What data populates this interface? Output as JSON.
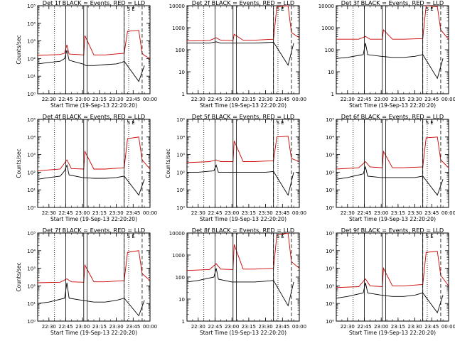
{
  "chart_data": [
    {
      "type": "line",
      "title": "Det 1f BLACK = Events, RED = LLD",
      "xlabel": "Start Time (19-Sep-13 22:20:20)",
      "ylabel": "Counts/sec",
      "yscale": "log",
      "ylim": [
        1,
        100000
      ],
      "yticks": [
        "10⁰",
        "10¹",
        "10²",
        "10³",
        "10⁴",
        "10⁵"
      ],
      "xticks": [
        "22:30",
        "22:45",
        "23:00",
        "23:15",
        "23:30",
        "23:45",
        "00:00"
      ],
      "xlim": [
        "22:20",
        "00:00"
      ],
      "markers": {
        "solid": [
          "22:45",
          "23:01",
          "23:04",
          "23:37"
        ],
        "dotted": [
          "22:35",
          "23:41"
        ],
        "dashed": [
          "23:37",
          "23:53"
        ]
      },
      "annotation": "S E",
      "series": [
        {
          "name": "BLACK = Events",
          "color": "#000000",
          "x": [
            "22:20",
            "22:30",
            "22:40",
            "22:44",
            "22:46",
            "22:48",
            "22:55",
            "23:00",
            "23:03",
            "23:10",
            "23:20",
            "23:30",
            "23:35",
            "23:37",
            "23:50",
            "23:55"
          ],
          "y": [
            50,
            60,
            70,
            100,
            300,
            80,
            60,
            50,
            40,
            40,
            45,
            50,
            60,
            70,
            5,
            40
          ]
        },
        {
          "name": "RED = LLD",
          "color": "#cc0000",
          "x": [
            "22:20",
            "22:30",
            "22:40",
            "22:44",
            "22:46",
            "22:48",
            "22:55",
            "23:01",
            "23:02",
            "23:10",
            "23:20",
            "23:37",
            "23:40",
            "23:50",
            "23:53",
            "23:55",
            "00:00"
          ],
          "y": [
            150,
            160,
            170,
            200,
            600,
            180,
            170,
            160,
            2000,
            160,
            160,
            200,
            3500,
            4000,
            200,
            150,
            100
          ]
        }
      ]
    },
    {
      "type": "line",
      "title": "Det 2f BLACK = Events, RED = LLD",
      "xlabel": "Start Time (19-Sep-13 22:20:20)",
      "ylabel": "",
      "yscale": "log",
      "ylim": [
        1,
        10000
      ],
      "yticks": [
        "1",
        "10",
        "100",
        "1000",
        "10000"
      ],
      "xticks": [
        "22:30",
        "22:45",
        "23:00",
        "23:15",
        "23:30",
        "23:45",
        "00:00"
      ],
      "xlim": [
        "22:20",
        "00:00"
      ],
      "markers": {
        "solid": [
          "22:45",
          "23:01",
          "23:04",
          "23:37"
        ],
        "dotted": [
          "22:35",
          "23:41"
        ],
        "dashed": [
          "23:37",
          "23:53"
        ]
      },
      "annotation": "S E",
      "series": [
        {
          "name": "BLACK = Events",
          "color": "#000000",
          "x": [
            "22:20",
            "22:40",
            "22:46",
            "22:50",
            "23:00",
            "23:10",
            "23:20",
            "23:30",
            "23:37",
            "23:50",
            "23:55"
          ],
          "y": [
            200,
            200,
            230,
            200,
            200,
            200,
            200,
            210,
            220,
            20,
            200
          ]
        },
        {
          "name": "RED = LLD",
          "color": "#cc0000",
          "x": [
            "22:20",
            "22:40",
            "22:46",
            "22:50",
            "23:01",
            "23:02",
            "23:10",
            "23:20",
            "23:37",
            "23:40",
            "23:50",
            "23:53",
            "00:00"
          ],
          "y": [
            250,
            260,
            350,
            270,
            260,
            500,
            270,
            270,
            300,
            9000,
            10000,
            600,
            350
          ]
        }
      ]
    },
    {
      "type": "line",
      "title": "Det 3f BLACK = Events, RED = LLD",
      "xlabel": "Start Time (19-Sep-13 22:20:20)",
      "ylabel": "",
      "yscale": "log",
      "ylim": [
        1,
        10000
      ],
      "yticks": [
        "1",
        "10",
        "100",
        "1000",
        "10000"
      ],
      "xticks": [
        "22:30",
        "22:45",
        "23:00",
        "23:15",
        "23:30",
        "23:45",
        "00:00"
      ],
      "xlim": [
        "22:20",
        "00:00"
      ],
      "markers": {
        "solid": [
          "22:45",
          "23:01",
          "23:04",
          "23:37"
        ],
        "dotted": [
          "22:35",
          "23:41"
        ],
        "dashed": [
          "23:37",
          "23:53"
        ]
      },
      "annotation": "S E",
      "series": [
        {
          "name": "BLACK = Events",
          "color": "#000000",
          "x": [
            "22:20",
            "22:30",
            "22:44",
            "22:46",
            "22:48",
            "23:00",
            "23:10",
            "23:20",
            "23:30",
            "23:37",
            "23:50",
            "23:55"
          ],
          "y": [
            40,
            45,
            60,
            200,
            60,
            50,
            45,
            45,
            50,
            60,
            5,
            40
          ]
        },
        {
          "name": "RED = LLD",
          "color": "#cc0000",
          "x": [
            "22:20",
            "22:40",
            "22:46",
            "22:50",
            "23:01",
            "23:02",
            "23:10",
            "23:20",
            "23:37",
            "23:40",
            "23:50",
            "23:53",
            "00:00"
          ],
          "y": [
            300,
            300,
            400,
            300,
            300,
            800,
            300,
            300,
            320,
            10000,
            9000,
            800,
            300
          ]
        }
      ]
    },
    {
      "type": "line",
      "title": "Det 4f BLACK = Events, RED = LLD",
      "xlabel": "Start Time (19-Sep-13 22:20:20)",
      "ylabel": "Counts/sec",
      "yscale": "log",
      "ylim": [
        1,
        100000
      ],
      "yticks": [
        "10⁰",
        "10¹",
        "10²",
        "10³",
        "10⁴",
        "10⁵"
      ],
      "xticks": [
        "22:30",
        "22:45",
        "23:00",
        "23:15",
        "23:30",
        "23:45",
        "00:00"
      ],
      "xlim": [
        "22:20",
        "00:00"
      ],
      "markers": {
        "solid": [
          "22:45",
          "23:01",
          "23:04",
          "23:37"
        ],
        "dotted": [
          "22:35",
          "23:41"
        ],
        "dashed": [
          "23:37",
          "23:53"
        ]
      },
      "annotation": "S E",
      "series": [
        {
          "name": "BLACK = Events",
          "color": "#000000",
          "x": [
            "22:20",
            "22:30",
            "22:40",
            "22:44",
            "22:46",
            "22:48",
            "23:00",
            "23:10",
            "23:20",
            "23:30",
            "23:37",
            "23:50",
            "23:55"
          ],
          "y": [
            40,
            50,
            60,
            120,
            250,
            70,
            50,
            45,
            45,
            50,
            60,
            5,
            40
          ]
        },
        {
          "name": "RED = LLD",
          "color": "#cc0000",
          "x": [
            "22:20",
            "22:40",
            "22:46",
            "22:50",
            "23:01",
            "23:02",
            "23:10",
            "23:20",
            "23:37",
            "23:40",
            "23:50",
            "23:53",
            "00:00"
          ],
          "y": [
            120,
            150,
            500,
            160,
            150,
            1500,
            150,
            150,
            180,
            8000,
            10000,
            500,
            150
          ]
        }
      ]
    },
    {
      "type": "line",
      "title": "Det 5f BLACK = Events, RED = LLD",
      "xlabel": "Start Time (19-Sep-13 22:20:20)",
      "ylabel": "Counts/sec",
      "yscale": "log",
      "ylim": [
        1,
        100000
      ],
      "yticks": [
        "10⁰",
        "10¹",
        "10²",
        "10³",
        "10⁴",
        "10⁵"
      ],
      "xticks": [
        "22:30",
        "22:45",
        "23:00",
        "23:15",
        "23:30",
        "23:45",
        "00:00"
      ],
      "xlim": [
        "22:20",
        "00:00"
      ],
      "markers": {
        "solid": [
          "22:45",
          "23:01",
          "23:04",
          "23:37"
        ],
        "dotted": [
          "22:35",
          "23:41"
        ],
        "dashed": [
          "23:37",
          "23:53"
        ]
      },
      "annotation": "S E",
      "series": [
        {
          "name": "BLACK = Events",
          "color": "#000000",
          "x": [
            "22:20",
            "22:30",
            "22:44",
            "22:46",
            "22:48",
            "23:00",
            "23:10",
            "23:20",
            "23:30",
            "23:37",
            "23:50",
            "23:55"
          ],
          "y": [
            100,
            100,
            120,
            250,
            100,
            100,
            100,
            100,
            100,
            110,
            5,
            100
          ]
        },
        {
          "name": "RED = LLD",
          "color": "#cc0000",
          "x": [
            "22:20",
            "22:40",
            "22:46",
            "22:50",
            "23:01",
            "23:02",
            "23:10",
            "23:20",
            "23:37",
            "23:40",
            "23:50",
            "23:53",
            "00:00"
          ],
          "y": [
            350,
            400,
            500,
            400,
            400,
            6000,
            400,
            400,
            450,
            10000,
            11000,
            600,
            400
          ]
        }
      ]
    },
    {
      "type": "line",
      "title": "Det 6f BLACK = Events, RED = LLD",
      "xlabel": "Start Time (19-Sep-13 22:20:20)",
      "ylabel": "",
      "yscale": "log",
      "ylim": [
        1,
        100000
      ],
      "yticks": [
        "10⁰",
        "10¹",
        "10²",
        "10³",
        "10⁴",
        "10⁵"
      ],
      "xticks": [
        "22:30",
        "22:45",
        "23:00",
        "23:15",
        "23:30",
        "23:45",
        "00:00"
      ],
      "xlim": [
        "22:20",
        "00:00"
      ],
      "markers": {
        "solid": [
          "22:45",
          "23:01",
          "23:04",
          "23:37"
        ],
        "dotted": [
          "22:35",
          "23:41"
        ],
        "dashed": [
          "23:37",
          "23:53"
        ]
      },
      "annotation": "S E",
      "series": [
        {
          "name": "BLACK = Events",
          "color": "#000000",
          "x": [
            "22:20",
            "22:30",
            "22:44",
            "22:46",
            "22:48",
            "23:00",
            "23:10",
            "23:20",
            "23:30",
            "23:37",
            "23:50",
            "23:55"
          ],
          "y": [
            40,
            50,
            80,
            200,
            60,
            50,
            50,
            50,
            50,
            60,
            5,
            40
          ]
        },
        {
          "name": "RED = LLD",
          "color": "#cc0000",
          "x": [
            "22:20",
            "22:40",
            "22:46",
            "22:50",
            "23:01",
            "23:02",
            "23:10",
            "23:20",
            "23:37",
            "23:40",
            "23:50",
            "23:53",
            "00:00"
          ],
          "y": [
            150,
            180,
            400,
            200,
            180,
            1500,
            180,
            180,
            200,
            9000,
            10000,
            500,
            180
          ]
        }
      ]
    },
    {
      "type": "line",
      "title": "Det 7f BLACK = Events, RED = LLD",
      "xlabel": "Start Time (19-Sep-13 22:20:20)",
      "ylabel": "Counts/sec",
      "yscale": "log",
      "ylim": [
        1,
        100000
      ],
      "yticks": [
        "10⁰",
        "10¹",
        "10²",
        "10³",
        "10⁴",
        "10⁵"
      ],
      "xticks": [
        "22:30",
        "22:45",
        "23:00",
        "23:15",
        "23:30",
        "23:45",
        "00:00"
      ],
      "xlim": [
        "22:20",
        "00:00"
      ],
      "markers": {
        "solid": [
          "22:45",
          "23:01",
          "23:04",
          "23:37"
        ],
        "dotted": [
          "22:35",
          "23:41"
        ],
        "dashed": [
          "23:37",
          "23:53"
        ]
      },
      "annotation": "S E",
      "series": [
        {
          "name": "BLACK = Events",
          "color": "#000000",
          "x": [
            "22:20",
            "22:30",
            "22:44",
            "22:46",
            "22:48",
            "23:00",
            "23:10",
            "23:20",
            "23:30",
            "23:37",
            "23:50",
            "23:55"
          ],
          "y": [
            10,
            12,
            20,
            150,
            20,
            15,
            12,
            12,
            15,
            20,
            2,
            15
          ]
        },
        {
          "name": "RED = LLD",
          "color": "#cc0000",
          "x": [
            "22:20",
            "22:40",
            "22:46",
            "22:50",
            "23:01",
            "23:02",
            "23:10",
            "23:20",
            "23:37",
            "23:40",
            "23:50",
            "23:53",
            "00:00"
          ],
          "y": [
            150,
            160,
            250,
            170,
            160,
            1500,
            170,
            170,
            200,
            8000,
            10000,
            500,
            200
          ]
        }
      ]
    },
    {
      "type": "line",
      "title": "Det 8f BLACK = Events, RED = LLD",
      "xlabel": "Start Time (19-Sep-13 22:20:20)",
      "ylabel": "",
      "yscale": "log",
      "ylim": [
        1,
        10000
      ],
      "yticks": [
        "1",
        "10",
        "100",
        "1000",
        "10000"
      ],
      "xticks": [
        "22:30",
        "22:45",
        "23:00",
        "23:15",
        "23:30",
        "23:45",
        "00:00"
      ],
      "xlim": [
        "22:20",
        "00:00"
      ],
      "markers": {
        "solid": [
          "22:45",
          "23:01",
          "23:04",
          "23:37"
        ],
        "dotted": [
          "22:35",
          "23:41"
        ],
        "dashed": [
          "23:37",
          "23:53"
        ]
      },
      "annotation": "S E",
      "series": [
        {
          "name": "BLACK = Events",
          "color": "#000000",
          "x": [
            "22:20",
            "22:30",
            "22:44",
            "22:46",
            "22:48",
            "23:00",
            "23:10",
            "23:20",
            "23:30",
            "23:37",
            "23:50",
            "23:55"
          ],
          "y": [
            60,
            70,
            100,
            250,
            80,
            60,
            60,
            60,
            65,
            70,
            5,
            60
          ]
        },
        {
          "name": "RED = LLD",
          "color": "#cc0000",
          "x": [
            "22:20",
            "22:40",
            "22:46",
            "22:50",
            "23:01",
            "23:02",
            "23:10",
            "23:20",
            "23:37",
            "23:40",
            "23:50",
            "23:53",
            "00:00"
          ],
          "y": [
            200,
            220,
            400,
            230,
            220,
            3000,
            230,
            230,
            250,
            8000,
            10000,
            500,
            250
          ]
        }
      ]
    },
    {
      "type": "line",
      "title": "Det 9f BLACK = Events, RED = LLD",
      "xlabel": "Start Time (19-Sep-13 22:20:20)",
      "ylabel": "",
      "yscale": "log",
      "ylim": [
        1,
        100000
      ],
      "yticks": [
        "10⁰",
        "10¹",
        "10²",
        "10³",
        "10⁴",
        "10⁵"
      ],
      "xticks": [
        "22:30",
        "22:45",
        "23:00",
        "23:15",
        "23:30",
        "23:45",
        "00:00"
      ],
      "xlim": [
        "22:20",
        "00:00"
      ],
      "markers": {
        "solid": [
          "22:45",
          "23:01",
          "23:04",
          "23:37"
        ],
        "dotted": [
          "22:35",
          "23:41"
        ],
        "dashed": [
          "23:37",
          "23:53"
        ]
      },
      "annotation": "S E",
      "series": [
        {
          "name": "BLACK = Events",
          "color": "#000000",
          "x": [
            "22:20",
            "22:30",
            "22:44",
            "22:46",
            "22:48",
            "23:00",
            "23:10",
            "23:20",
            "23:30",
            "23:37",
            "23:50",
            "23:55"
          ],
          "y": [
            20,
            25,
            40,
            150,
            40,
            30,
            25,
            25,
            30,
            40,
            3,
            30
          ]
        },
        {
          "name": "RED = LLD",
          "color": "#cc0000",
          "x": [
            "22:20",
            "22:40",
            "22:46",
            "22:50",
            "23:01",
            "23:02",
            "23:10",
            "23:20",
            "23:37",
            "23:40",
            "23:50",
            "23:53",
            "00:00"
          ],
          "y": [
            80,
            90,
            250,
            100,
            90,
            1000,
            100,
            100,
            120,
            8000,
            9000,
            400,
            100
          ]
        }
      ]
    }
  ]
}
